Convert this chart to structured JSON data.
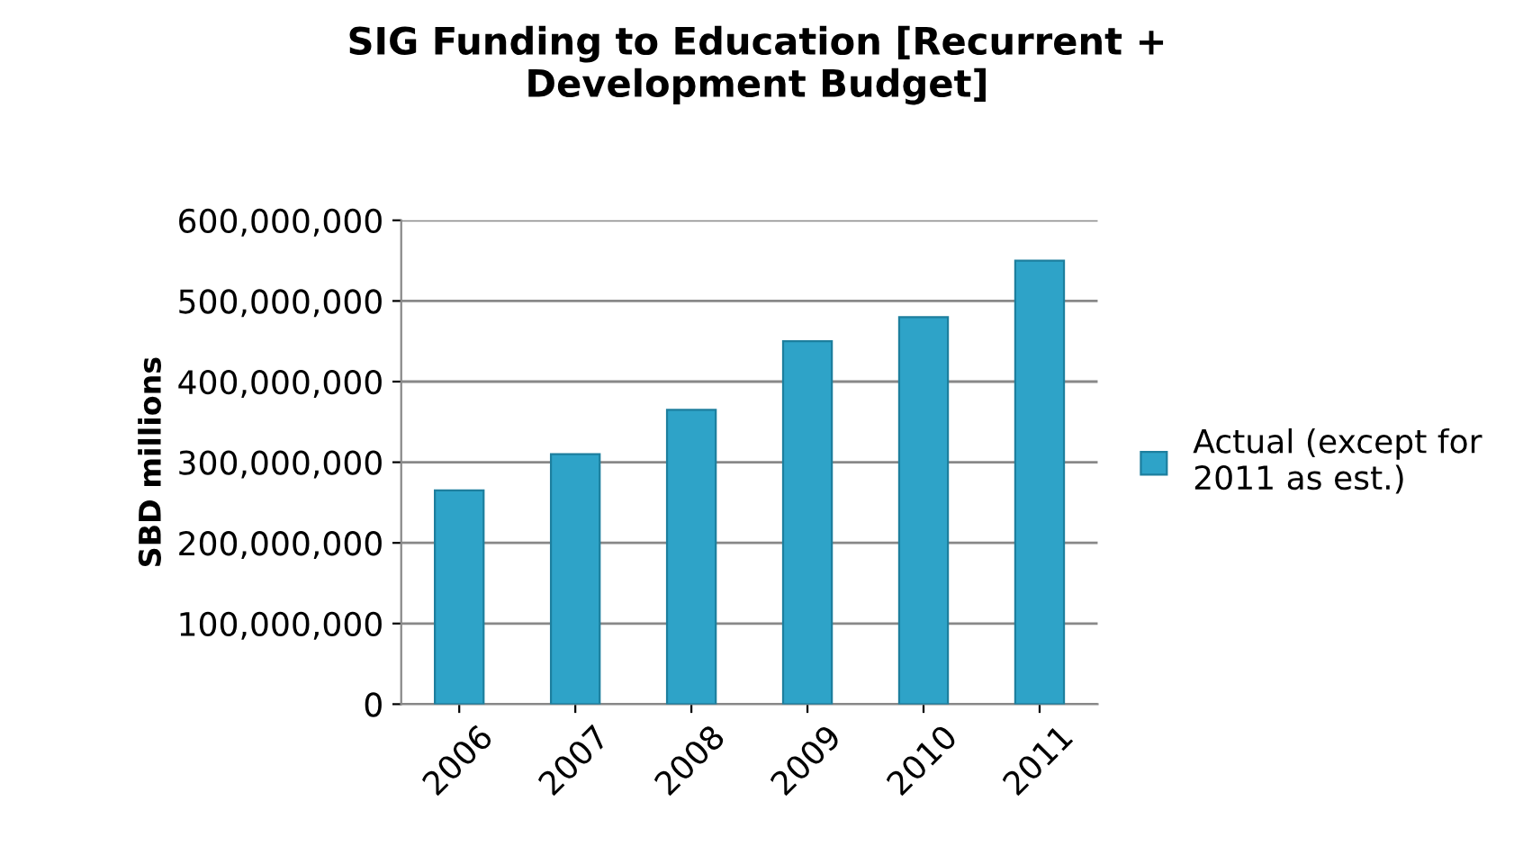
{
  "chart_data": {
    "type": "bar",
    "title": "SIG Funding to Education [Recurrent +\nDevelopment Budget]",
    "ylabel": "SBD millions",
    "categories": [
      "2006",
      "2007",
      "2008",
      "2009",
      "2010",
      "2011"
    ],
    "series": [
      {
        "name": "Actual (except for\n2011 as est.)",
        "color": "#2ea3c8",
        "values": [
          265000000,
          310000000,
          365000000,
          450000000,
          480000000,
          550000000
        ]
      }
    ],
    "ylim": [
      0,
      600000000
    ],
    "yticks": [
      {
        "value": 0,
        "label": "0"
      },
      {
        "value": 100000000,
        "label": "100,000,000"
      },
      {
        "value": 200000000,
        "label": "200,000,000"
      },
      {
        "value": 300000000,
        "label": "300,000,000"
      },
      {
        "value": 400000000,
        "label": "400,000,000"
      },
      {
        "value": 500000000,
        "label": "500,000,000"
      },
      {
        "value": 600000000,
        "label": "600,000,000"
      }
    ],
    "grid": "y",
    "legend": "right"
  }
}
